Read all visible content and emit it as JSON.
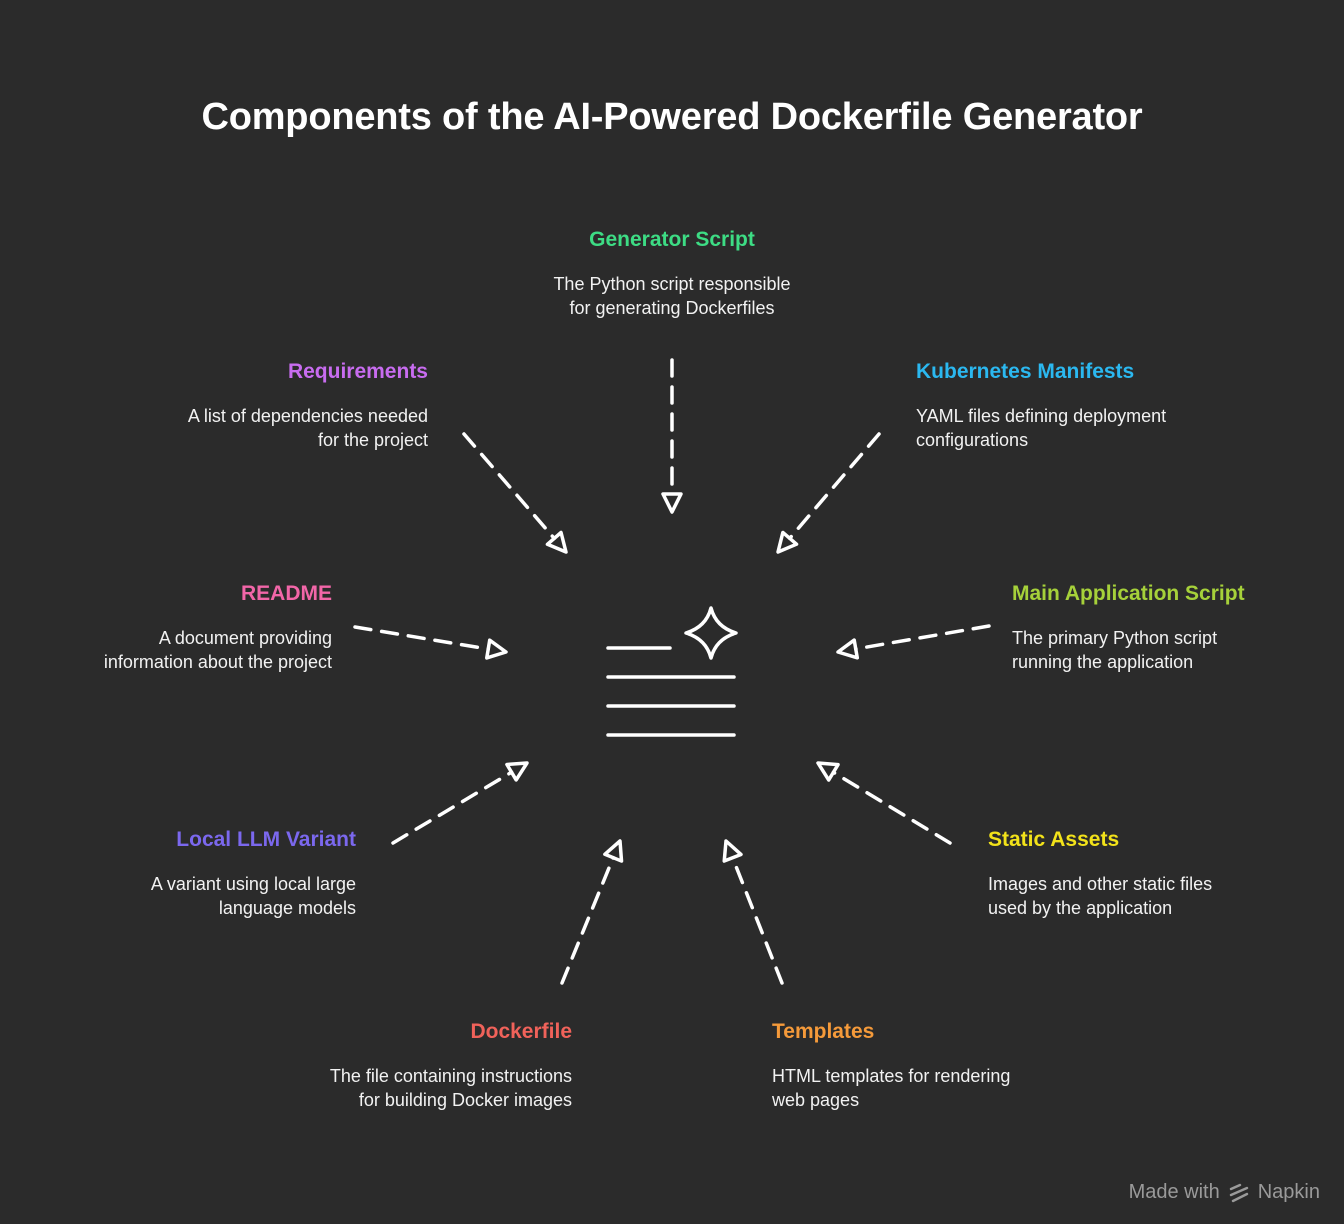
{
  "title": "Components of the AI-Powered Dockerfile Generator",
  "colors": {
    "background": "#2b2b2b",
    "arrow": "#ffffff",
    "generator": "#3ddc84",
    "requirements": "#c86cf0",
    "kubernetes": "#2bb8f0",
    "readme": "#f266a8",
    "main_app": "#a6d13a",
    "local_llm": "#7b68ee",
    "static_assets": "#f2e21a",
    "dockerfile": "#f0625a",
    "templates": "#f59a3a"
  },
  "center_icon": "document-sparkle-icon",
  "nodes": {
    "generator": {
      "heading": "Generator Script",
      "desc": "The Python script responsible\nfor generating Dockerfiles"
    },
    "requirements": {
      "heading": "Requirements",
      "desc": "A list of dependencies needed\nfor the project"
    },
    "kubernetes": {
      "heading": "Kubernetes Manifests",
      "desc": "YAML files defining deployment\nconfigurations"
    },
    "readme": {
      "heading": "README",
      "desc": "A document providing\ninformation about the project"
    },
    "main_app": {
      "heading": "Main Application Script",
      "desc": "The primary Python script\nrunning the application"
    },
    "local_llm": {
      "heading": "Local LLM Variant",
      "desc": "A variant using local large\nlanguage models"
    },
    "static_assets": {
      "heading": "Static Assets",
      "desc": "Images and other static files\nused by the application"
    },
    "dockerfile": {
      "heading": "Dockerfile",
      "desc": "The file containing instructions\nfor building Docker images"
    },
    "templates": {
      "heading": "Templates",
      "desc": "HTML templates for rendering\nweb pages"
    }
  },
  "footer": {
    "made_with": "Made with",
    "brand": "Napkin",
    "brand_icon": "napkin-logo-icon"
  }
}
